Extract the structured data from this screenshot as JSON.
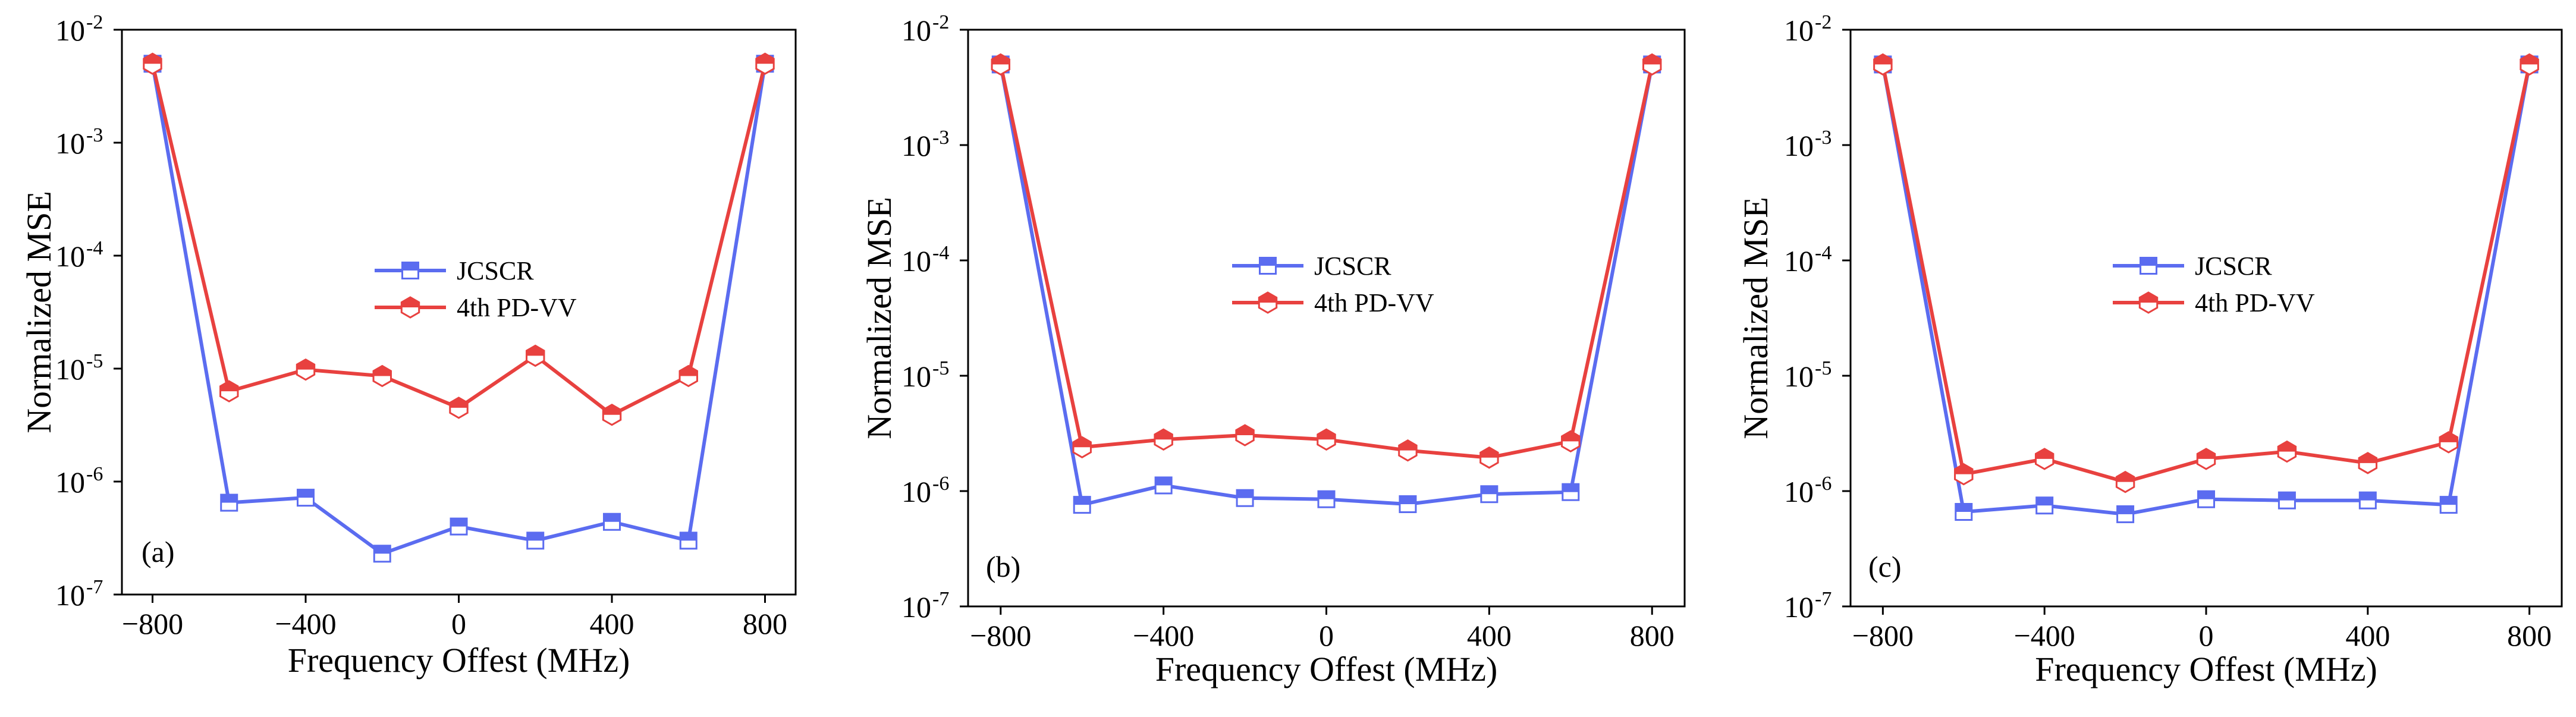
{
  "chart_data": [
    {
      "type": "line",
      "panel_label": "(a)",
      "xlabel": "Frequency Offest (MHz)",
      "ylabel": "Normalized MSE",
      "yscale": "log",
      "xlim": [
        -880,
        880
      ],
      "ylim": [
        1e-07,
        0.01
      ],
      "x_ticks": [
        -800,
        -400,
        0,
        400,
        800
      ],
      "x_tick_labels": [
        "−800",
        "−400",
        "0",
        "400",
        "800"
      ],
      "y_ticks": [
        1e-07,
        1e-06,
        1e-05,
        0.0001,
        0.001,
        0.01
      ],
      "y_tick_bases": [
        "10",
        "10",
        "10",
        "10",
        "10",
        "10"
      ],
      "y_tick_exps": [
        "-7",
        "-6",
        "-5",
        "-4",
        "-3",
        "-2"
      ],
      "legend_position": "center",
      "x": [
        -800,
        -600,
        -400,
        -200,
        0,
        200,
        400,
        600,
        800
      ],
      "series": [
        {
          "name": "JCSCR",
          "color": "#5b6cf0",
          "marker": "square",
          "values": [
            0.005,
            6.5e-07,
            7.2e-07,
            2.3e-07,
            4e-07,
            3e-07,
            4.4e-07,
            3e-07,
            0.005
          ]
        },
        {
          "name": "4th PD-VV",
          "color": "#e8413f",
          "marker": "hexagon",
          "values": [
            0.005,
            6.3e-06,
            9.8e-06,
            8.6e-06,
            4.5e-06,
            1.3e-05,
            3.9e-06,
            8.6e-06,
            0.005
          ]
        }
      ]
    },
    {
      "type": "line",
      "panel_label": "(b)",
      "xlabel": "Frequency Offest (MHz)",
      "ylabel": "Normalized MSE",
      "yscale": "log",
      "xlim": [
        -880,
        880
      ],
      "ylim": [
        1e-07,
        0.01
      ],
      "x_ticks": [
        -800,
        -400,
        0,
        400,
        800
      ],
      "x_tick_labels": [
        "−800",
        "−400",
        "0",
        "400",
        "800"
      ],
      "y_ticks": [
        1e-07,
        1e-06,
        1e-05,
        0.0001,
        0.001,
        0.01
      ],
      "y_tick_bases": [
        "10",
        "10",
        "10",
        "10",
        "10",
        "10"
      ],
      "y_tick_exps": [
        "-7",
        "-6",
        "-5",
        "-4",
        "-3",
        "-2"
      ],
      "legend_position": "center",
      "x": [
        -800,
        -600,
        -400,
        -200,
        0,
        200,
        400,
        600,
        800
      ],
      "series": [
        {
          "name": "JCSCR",
          "color": "#5b6cf0",
          "marker": "square",
          "values": [
            0.005,
            7.6e-07,
            1.12e-06,
            8.7e-07,
            8.5e-07,
            7.7e-07,
            9.4e-07,
            9.8e-07,
            0.005
          ]
        },
        {
          "name": "4th PD-VV",
          "color": "#e8413f",
          "marker": "hexagon",
          "values": [
            0.005,
            2.4e-06,
            2.8e-06,
            3.05e-06,
            2.8e-06,
            2.25e-06,
            1.95e-06,
            2.7e-06,
            0.005
          ]
        }
      ]
    },
    {
      "type": "line",
      "panel_label": "(c)",
      "xlabel": "Frequency Offest (MHz)",
      "ylabel": "Normalized MSE",
      "yscale": "log",
      "xlim": [
        -880,
        880
      ],
      "ylim": [
        1e-07,
        0.01
      ],
      "x_ticks": [
        -800,
        -400,
        0,
        400,
        800
      ],
      "x_tick_labels": [
        "−800",
        "−400",
        "0",
        "400",
        "800"
      ],
      "y_ticks": [
        1e-07,
        1e-06,
        1e-05,
        0.0001,
        0.001,
        0.01
      ],
      "y_tick_bases": [
        "10",
        "10",
        "10",
        "10",
        "10",
        "10"
      ],
      "y_tick_exps": [
        "-7",
        "-6",
        "-5",
        "-4",
        "-3",
        "-2"
      ],
      "legend_position": "center",
      "x": [
        -800,
        -600,
        -400,
        -200,
        0,
        200,
        400,
        600,
        800
      ],
      "series": [
        {
          "name": "JCSCR",
          "color": "#5b6cf0",
          "marker": "square",
          "values": [
            0.005,
            6.6e-07,
            7.5e-07,
            6.3e-07,
            8.5e-07,
            8.3e-07,
            8.3e-07,
            7.6e-07,
            0.005
          ]
        },
        {
          "name": "4th PD-VV",
          "color": "#e8413f",
          "marker": "hexagon",
          "values": [
            0.005,
            1.4e-06,
            1.9e-06,
            1.2e-06,
            1.9e-06,
            2.2e-06,
            1.75e-06,
            2.65e-06,
            0.005
          ]
        }
      ]
    }
  ]
}
